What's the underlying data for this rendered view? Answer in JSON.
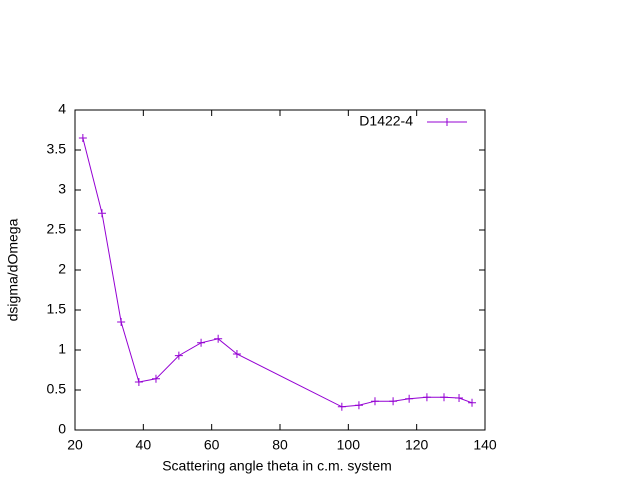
{
  "chart_data": {
    "type": "line",
    "xlabel": "Scattering angle theta in c.m. system",
    "ylabel": "dsigma/dOmega",
    "x": [
      22.3,
      27.9,
      33.5,
      38.7,
      43.7,
      50.4,
      56.9,
      61.9,
      67.4,
      98.1,
      103.1,
      107.8,
      113.1,
      117.8,
      123.0,
      128.0,
      132.4,
      136.2
    ],
    "series": [
      {
        "name": "D1422-4",
        "color": "#9400d3",
        "values": [
          3.65,
          2.71,
          1.35,
          0.6,
          0.64,
          0.93,
          1.09,
          1.14,
          0.95,
          0.29,
          0.31,
          0.36,
          0.36,
          0.39,
          0.41,
          0.41,
          0.4,
          0.34
        ]
      }
    ],
    "xlim": [
      20,
      140
    ],
    "xticks": [
      20,
      40,
      60,
      80,
      100,
      120,
      140
    ],
    "ylim": [
      0,
      4
    ],
    "yticks": [
      0,
      {
        "value": 0.5,
        "label": "0.5"
      },
      1,
      {
        "value": 1.5,
        "label": "1.5"
      },
      2,
      {
        "value": 2.5,
        "label": "2.5"
      },
      3,
      {
        "value": 3.5,
        "label": "3.5"
      },
      4
    ],
    "legend": "top-right"
  }
}
